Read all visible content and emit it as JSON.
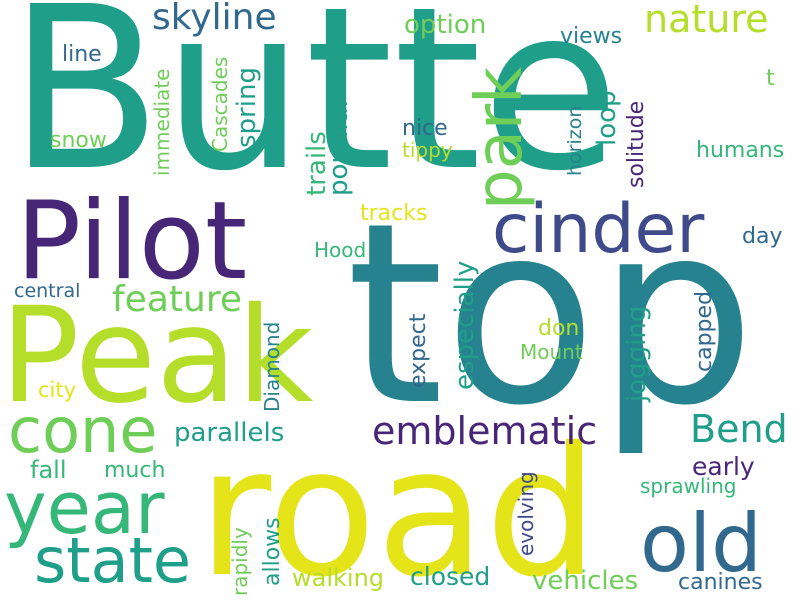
{
  "word_cloud": {
    "colors": {
      "background": "#ffffff",
      "purple": "#482677",
      "indigo": "#3e4a89",
      "slate": "#31688e",
      "teal_blue": "#26828e",
      "teal": "#1f9e89",
      "green_teal": "#35b779",
      "green": "#6ece58",
      "lime": "#b5de2b",
      "yellow": "#e5e419"
    },
    "words": {
      "butte": "Butte",
      "top": "top",
      "road": "road",
      "peak": "Peak",
      "pilot": "Pilot",
      "cinder": "cinder",
      "park": "park",
      "year": "year",
      "cone": "cone",
      "state": "state",
      "old": "old",
      "emblematic": "emblematic",
      "nature": "nature",
      "skyline": "skyline",
      "feature": "feature",
      "bend": "Bend",
      "parallels": "parallels",
      "option": "option",
      "views": "views",
      "line": "line",
      "snow": "snow",
      "immediate": "immediate",
      "cascades": "Cascades",
      "spring": "spring",
      "trails": "trails",
      "popular": "popular",
      "nice": "nice",
      "tippy": "tippy",
      "loop": "loop",
      "solitude": "solitude",
      "horizon": "horizon",
      "humans": "humans",
      "t": "t",
      "tracks": "tracks",
      "day": "day",
      "hood": "Hood",
      "central": "central",
      "especially": "especially",
      "expect": "expect",
      "don": "don",
      "mount": "Mount",
      "diamond": "Diamond",
      "jogging": "jogging",
      "capped": "capped",
      "city": "city",
      "early": "early",
      "fall": "fall",
      "much": "much",
      "evolving": "evolving",
      "sprawling": "sprawling",
      "allows": "allows",
      "rapidly": "rapidly",
      "walking": "walking",
      "closed": "closed",
      "vehicles": "vehicles",
      "canines": "canines"
    }
  }
}
